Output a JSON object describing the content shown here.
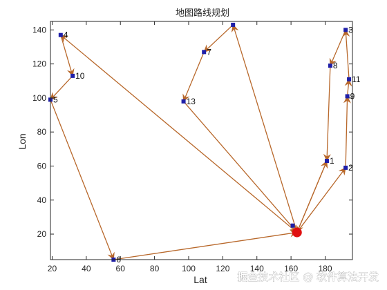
{
  "chart_data": {
    "type": "line",
    "title": "地图路线规划",
    "xlabel": "Lat",
    "ylabel": "Lon",
    "xlim": [
      19,
      196
    ],
    "ylim": [
      5,
      145
    ],
    "xticks": [
      20,
      40,
      60,
      80,
      100,
      120,
      140,
      160,
      180
    ],
    "yticks": [
      20,
      40,
      60,
      80,
      100,
      120,
      140
    ],
    "grid": false,
    "route_color": "#b8682b",
    "marker_color": "#1f1fa8",
    "start_color": "#e01010",
    "start_point": [
      163.5,
      21
    ],
    "points": [
      {
        "x": 161,
        "y": 25,
        "label": ""
      },
      {
        "x": 181,
        "y": 63,
        "label": "1"
      },
      {
        "x": 192,
        "y": 59,
        "label": "2"
      },
      {
        "x": 193,
        "y": 101,
        "label": "9"
      },
      {
        "x": 194,
        "y": 111,
        "label": "11"
      },
      {
        "x": 192,
        "y": 140,
        "label": "3"
      },
      {
        "x": 183,
        "y": 119,
        "label": "8"
      },
      {
        "x": 126,
        "y": 143,
        "label": ""
      },
      {
        "x": 109,
        "y": 127,
        "label": "7"
      },
      {
        "x": 97,
        "y": 98,
        "label": "13"
      },
      {
        "x": 25,
        "y": 137,
        "label": "4"
      },
      {
        "x": 32,
        "y": 113,
        "label": "10"
      },
      {
        "x": 19,
        "y": 99,
        "label": "5"
      },
      {
        "x": 56,
        "y": 5,
        "label": "6"
      }
    ],
    "route": [
      [
        163.5,
        21
      ],
      [
        181,
        63
      ],
      [
        163.5,
        21
      ],
      [
        192,
        59
      ],
      [
        193,
        101
      ],
      [
        194,
        111
      ],
      [
        192,
        140
      ],
      [
        183,
        119
      ],
      [
        181,
        63
      ]
    ],
    "route_extra": [
      [
        [
          163.5,
          21
        ],
        [
          126,
          143
        ]
      ],
      [
        [
          126,
          143
        ],
        [
          109,
          127
        ]
      ],
      [
        [
          109,
          127
        ],
        [
          97,
          98
        ]
      ],
      [
        [
          97,
          98
        ],
        [
          163.5,
          21
        ]
      ],
      [
        [
          163.5,
          21
        ],
        [
          25,
          137
        ]
      ],
      [
        [
          25,
          137
        ],
        [
          32,
          113
        ]
      ],
      [
        [
          32,
          113
        ],
        [
          19,
          99
        ]
      ],
      [
        [
          19,
          99
        ],
        [
          56,
          5
        ]
      ],
      [
        [
          56,
          5
        ],
        [
          163.5,
          21
        ]
      ]
    ]
  },
  "watermark": "掘金技术社区 @ 软件算法开发"
}
